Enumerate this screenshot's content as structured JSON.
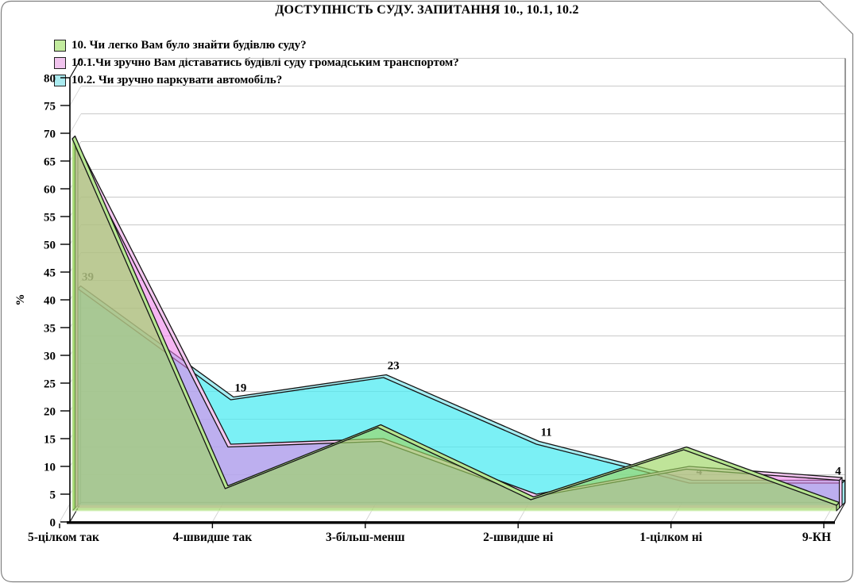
{
  "title": "ДОСТУПНІСТЬ СУДУ. ЗАПИТАННЯ 10., 10.1, 10.2",
  "chart_data": {
    "type": "area",
    "projection": "3d",
    "title": "ДОСТУПНІСТЬ СУДУ. ЗАПИТАННЯ 10., 10.1, 10.2",
    "categories": [
      "5-цілком так",
      "4-швидше так",
      "3-більш-менш",
      "2-швидше ні",
      "1-цілком ні",
      "9-КН"
    ],
    "series": [
      {
        "name": "10. Чи легко Вам було знайти будівлю суду?",
        "values": [
          67,
          4,
          15,
          2,
          11,
          1
        ],
        "legend_color": "#c2eb9e",
        "fill": "rgba(157,214,98,0.65)",
        "ribbon": "#b6e590",
        "edge": "#daf3c2",
        "data_labels_shown": false
      },
      {
        "name": "10.1.Чи зручно Вам діставатись будівлі суду громадським транспортом?",
        "values": [
          65,
          11,
          12,
          2,
          7,
          5
        ],
        "legend_color": "#f0c3ed",
        "fill": "rgba(238,128,234,0.58)",
        "ribbon": "#f4c7f1",
        "edge": "#f9e0f7",
        "data_labels_shown": false
      },
      {
        "name": "10.2. Чи зручно паркувати автомобіль?",
        "values": [
          39,
          19,
          23,
          11,
          4,
          4
        ],
        "legend_color": "#aaebf0",
        "fill": "rgba(77,235,242,0.74)",
        "ribbon": "#a5eef3",
        "edge": "#ccf5f7",
        "data_labels_shown": true,
        "data_labels": [
          "39",
          "19",
          "23",
          "11",
          "4",
          "4"
        ]
      }
    ],
    "xlabel": "",
    "ylabel": "%",
    "ylim": [
      0,
      80
    ],
    "ytick_step": 5,
    "grid": true,
    "legend_position": "top-left"
  },
  "colors": {
    "axis": "#000000",
    "gridline": "#c9c9c9",
    "floor_line": "#222222",
    "wall_line": "#444444",
    "data_label": "#000000",
    "frame_border": "#808080"
  }
}
